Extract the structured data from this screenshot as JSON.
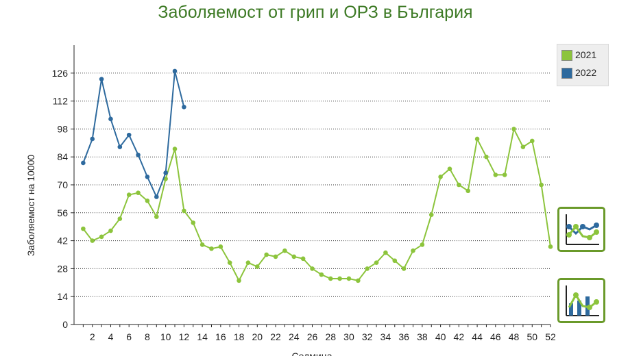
{
  "chart_data": {
    "type": "line",
    "title": "Заболяемост от грип и ОРЗ в България",
    "xlabel": "Седмица",
    "ylabel": "Заболяемост на 10000",
    "ylim": [
      0,
      140
    ],
    "xlim": [
      0,
      52
    ],
    "yticks": [
      0,
      14,
      28,
      42,
      56,
      70,
      84,
      98,
      112,
      126
    ],
    "xticks": [
      2,
      4,
      6,
      8,
      10,
      12,
      14,
      16,
      18,
      20,
      22,
      24,
      26,
      28,
      30,
      32,
      34,
      36,
      38,
      40,
      42,
      44,
      46,
      48,
      50,
      52
    ],
    "grid": "horizontal dotted",
    "legend_position": "top-right",
    "series": [
      {
        "name": "2021",
        "color": "#8cc43c",
        "x": [
          1,
          2,
          3,
          4,
          5,
          6,
          7,
          8,
          9,
          10,
          11,
          12,
          13,
          14,
          15,
          16,
          17,
          18,
          19,
          20,
          21,
          22,
          23,
          24,
          25,
          26,
          27,
          28,
          29,
          30,
          31,
          32,
          33,
          34,
          35,
          36,
          37,
          38,
          39,
          40,
          41,
          42,
          43,
          44,
          45,
          46,
          47,
          48,
          49,
          50,
          51,
          52
        ],
        "values": [
          48,
          42,
          44,
          47,
          53,
          65,
          66,
          62,
          54,
          73,
          88,
          57,
          51,
          40,
          38,
          39,
          31,
          22,
          31,
          29,
          35,
          34,
          37,
          34,
          33,
          28,
          25,
          23,
          23,
          23,
          22,
          28,
          31,
          36,
          32,
          28,
          37,
          40,
          55,
          74,
          78,
          70,
          67,
          93,
          84,
          75,
          75,
          98,
          89,
          92,
          70,
          39
        ]
      },
      {
        "name": "2022",
        "color": "#2e6a9e",
        "x": [
          1,
          2,
          3,
          4,
          5,
          6,
          7,
          8,
          9,
          10,
          11,
          12
        ],
        "values": [
          81,
          93,
          123,
          103,
          89,
          95,
          85,
          74,
          64,
          76,
          127,
          109
        ]
      }
    ]
  },
  "buttons": {
    "line_chart_icon": "line-chart-icon",
    "bar_line_chart_icon": "bar-line-chart-icon"
  }
}
